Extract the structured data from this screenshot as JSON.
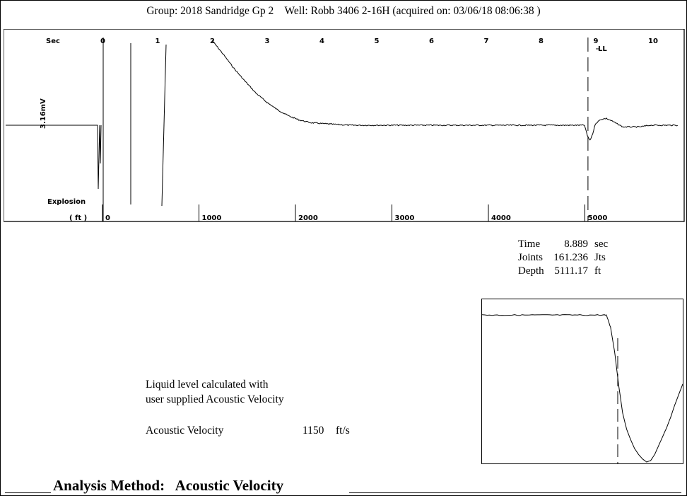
{
  "header": {
    "text": "Group: 2018 Sandridge Gp 2    Well: Robb 3406 2-16H (acquired on: 03/06/18 08:06:38 )"
  },
  "chart_data": [
    {
      "type": "line",
      "title": "",
      "x_axis_top": {
        "label": "Sec",
        "ticks": [
          "0",
          "1",
          "2",
          "3",
          "4",
          "5",
          "6",
          "7",
          "8",
          "9",
          "10"
        ],
        "range": [
          0,
          10.5
        ]
      },
      "x_axis_bottom": {
        "label": "( ft )",
        "ticks": [
          "0",
          "1000",
          "2000",
          "3000",
          "4000",
          "5000"
        ]
      },
      "y_label": "3.16mV",
      "annotations": [
        "Explosion",
        "LL"
      ],
      "liquid_level_time": 8.889,
      "series": [
        {
          "x": [
            2.0,
            2.2,
            2.4,
            2.6,
            2.8,
            3.0,
            3.2,
            3.4,
            3.6,
            3.8,
            4.0,
            4.5,
            5.0,
            6.0,
            7.0,
            8.0,
            8.8,
            8.85,
            8.9,
            8.95,
            9.0,
            9.1,
            9.2,
            9.3,
            9.5,
            9.8,
            10.0,
            10.5
          ],
          "y": [
            1.0,
            0.84,
            0.67,
            0.52,
            0.38,
            0.27,
            0.18,
            0.11,
            0.06,
            0.03,
            0.02,
            0.0,
            0.0,
            0.0,
            0.0,
            0.0,
            0.0,
            -0.12,
            -0.18,
            -0.1,
            0.02,
            0.07,
            0.08,
            0.05,
            -0.02,
            -0.02,
            0.0,
            0.0
          ]
        }
      ]
    },
    {
      "type": "line",
      "title": "",
      "description_series": [
        {
          "x": [
            0,
            10,
            20,
            30,
            40,
            50,
            60,
            62,
            64,
            66,
            68,
            70,
            72,
            74,
            76,
            78,
            80,
            82,
            84,
            86,
            88,
            90,
            92,
            94,
            96,
            98,
            100
          ],
          "y": [
            0.98,
            0.98,
            0.98,
            0.98,
            0.98,
            0.98,
            0.98,
            0.98,
            0.9,
            0.74,
            0.52,
            0.33,
            0.22,
            0.15,
            0.09,
            0.05,
            0.02,
            0.0,
            0.01,
            0.05,
            0.11,
            0.17,
            0.23,
            0.3,
            0.38,
            0.45,
            0.52
          ]
        }
      ]
    }
  ],
  "readout": {
    "rows": [
      {
        "label": "Time",
        "value": "8.889",
        "unit": "sec"
      },
      {
        "label": "Joints",
        "value": "161.236",
        "unit": "Jts"
      },
      {
        "label": "Depth",
        "value": "5111.17",
        "unit": "ft"
      }
    ]
  },
  "note": {
    "line1": "Liquid level calculated with",
    "line2": "user supplied Acoustic Velocity"
  },
  "velocity": {
    "label": "Acoustic Velocity",
    "value": "1150",
    "unit": "ft/s"
  },
  "footer": {
    "method_text": "Analysis Method:   Acoustic Velocity"
  }
}
